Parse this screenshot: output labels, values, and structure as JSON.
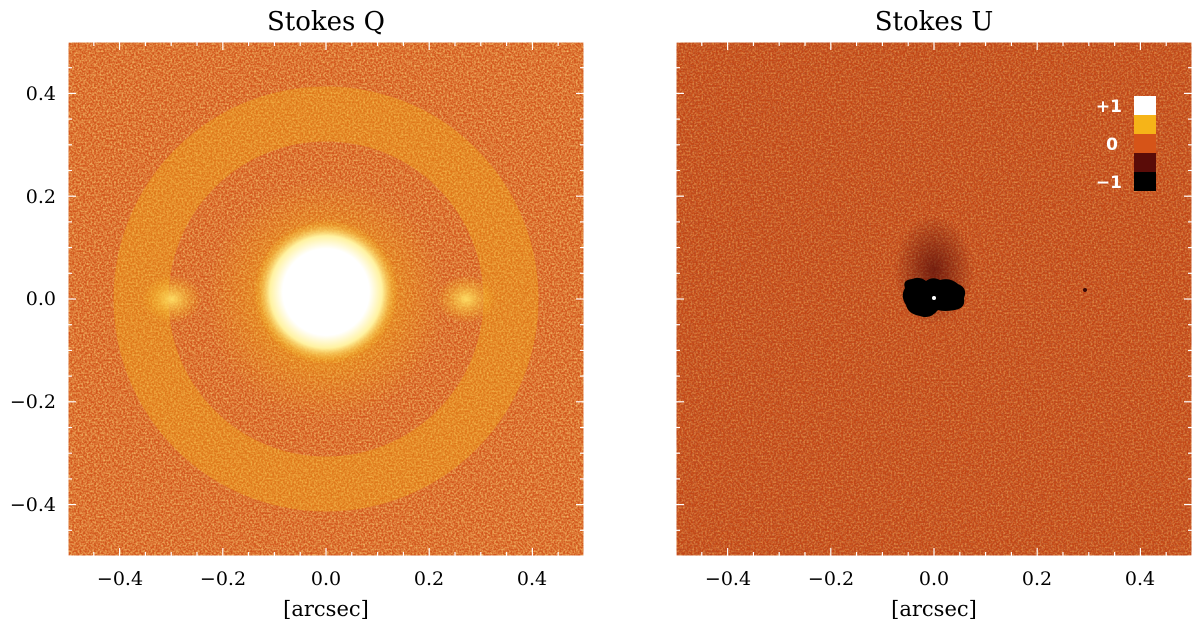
{
  "colors": {
    "background_noise": "#d2561c",
    "hot_white": "#ffffff",
    "hot_yellow": "#f6b418",
    "hot_orange": "#d65418",
    "hot_dark": "#5a0c08",
    "hot_black": "#000000"
  },
  "panels": [
    {
      "title": "Stokes Q",
      "xlabel": "[arcsec]",
      "x_ticks": [
        "−0.4",
        "−0.2",
        "0.0",
        "0.2",
        "0.4"
      ],
      "y_ticks": [
        "0.4",
        "0.2",
        "0.0",
        "−0.2",
        "−0.4"
      ],
      "xlim": [
        -0.5,
        0.5
      ],
      "ylim": [
        -0.5,
        0.5
      ]
    },
    {
      "title": "Stokes U",
      "xlabel": "[arcsec]",
      "x_ticks": [
        "−0.4",
        "−0.2",
        "0.0",
        "0.2",
        "0.4"
      ],
      "xlim": [
        -0.5,
        0.5
      ],
      "ylim": [
        -0.5,
        0.5
      ],
      "colorbar": {
        "labels": [
          "+1",
          "0",
          "−1"
        ],
        "levels": [
          1,
          0.5,
          0,
          -0.5,
          -1
        ]
      }
    }
  ]
}
